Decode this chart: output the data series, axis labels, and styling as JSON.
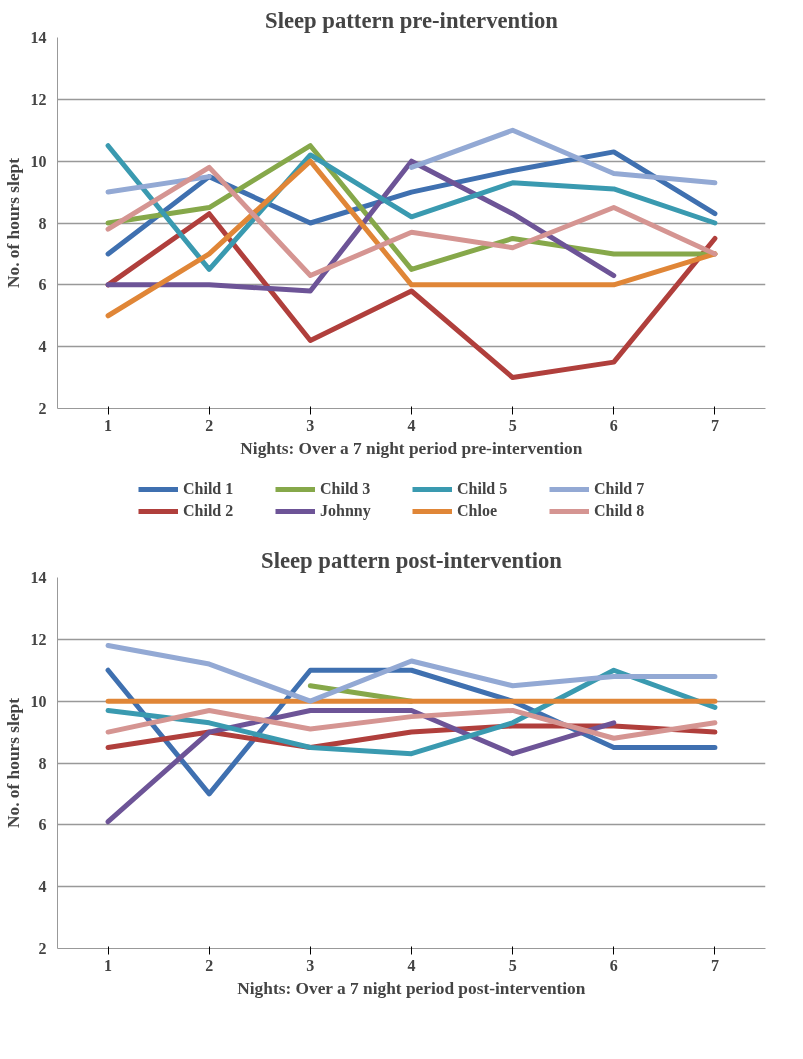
{
  "chart_data": [
    {
      "type": "line",
      "title": "Sleep pattern pre-intervention",
      "xlabel": "Nights: Over a 7 night period pre-intervention",
      "ylabel": "No. of hours slept",
      "categories": [
        "1",
        "2",
        "3",
        "4",
        "5",
        "6",
        "7"
      ],
      "ylim": [
        2,
        14
      ],
      "yticks": [
        2,
        4,
        6,
        8,
        10,
        12,
        14
      ],
      "grid": "y",
      "legend": "bottom",
      "marker": "none",
      "line_style": "solid",
      "series": [
        {
          "name": "Child 1",
          "color": "#3f70b0",
          "values": [
            7,
            9.5,
            8,
            9,
            9.7,
            10.3,
            8.3
          ]
        },
        {
          "name": "Child 2",
          "color": "#b03f3c",
          "values": [
            6,
            8.3,
            4.2,
            5.8,
            3,
            3.5,
            7.5
          ]
        },
        {
          "name": "Child 3",
          "color": "#86a84a",
          "values": [
            8,
            8.5,
            10.5,
            6.5,
            7.5,
            7,
            7
          ]
        },
        {
          "name": "Johnny",
          "color": "#6d5497",
          "values": [
            6,
            6,
            5.8,
            10,
            8.3,
            6.3,
            null
          ]
        },
        {
          "name": "Child 5",
          "color": "#3a9ab0",
          "values": [
            10.5,
            6.5,
            10.2,
            8.2,
            9.3,
            9.1,
            8
          ]
        },
        {
          "name": "Chloe",
          "color": "#e08637",
          "values": [
            5,
            7,
            10,
            6,
            6,
            6,
            7
          ]
        },
        {
          "name": "Child 7",
          "color": "#93a9d4",
          "values": [
            9,
            9.5,
            null,
            9.8,
            11,
            9.6,
            9.3
          ]
        },
        {
          "name": "Child 8",
          "color": "#d59592",
          "values": [
            7.8,
            9.8,
            6.3,
            7.7,
            7.2,
            8.5,
            7
          ]
        }
      ]
    },
    {
      "type": "line",
      "title": "Sleep pattern post-intervention",
      "xlabel": "Nights: Over a 7 night period post-intervention",
      "ylabel": "No. of hours slept",
      "categories": [
        "1",
        "2",
        "3",
        "4",
        "5",
        "6",
        "7"
      ],
      "ylim": [
        2,
        14
      ],
      "yticks": [
        2,
        4,
        6,
        8,
        10,
        12,
        14
      ],
      "grid": "y",
      "marker": "none",
      "line_style": "solid",
      "series": [
        {
          "color": "#3f70b0",
          "values": [
            11,
            7,
            11,
            11,
            10,
            8.5,
            8.5
          ]
        },
        {
          "color": "#b03f3c",
          "values": [
            8.5,
            9,
            8.5,
            9,
            9.2,
            9.2,
            9
          ]
        },
        {
          "color": "#86a84a",
          "values": [
            null,
            null,
            10.5,
            10,
            null,
            null,
            null
          ]
        },
        {
          "color": "#6d5497",
          "values": [
            6.1,
            9,
            9.7,
            9.7,
            8.3,
            9.3,
            null
          ]
        },
        {
          "color": "#3a9ab0",
          "values": [
            9.7,
            9.3,
            8.5,
            8.3,
            9.3,
            11,
            9.8
          ]
        },
        {
          "color": "#e08637",
          "values": [
            10,
            10,
            10,
            10,
            10,
            10,
            10
          ]
        },
        {
          "color": "#93a9d4",
          "values": [
            11.8,
            11.2,
            10,
            11.3,
            10.5,
            10.8,
            10.8
          ]
        },
        {
          "color": "#d59592",
          "values": [
            9,
            9.7,
            9.1,
            9.5,
            9.7,
            8.8,
            9.3
          ]
        }
      ]
    }
  ]
}
